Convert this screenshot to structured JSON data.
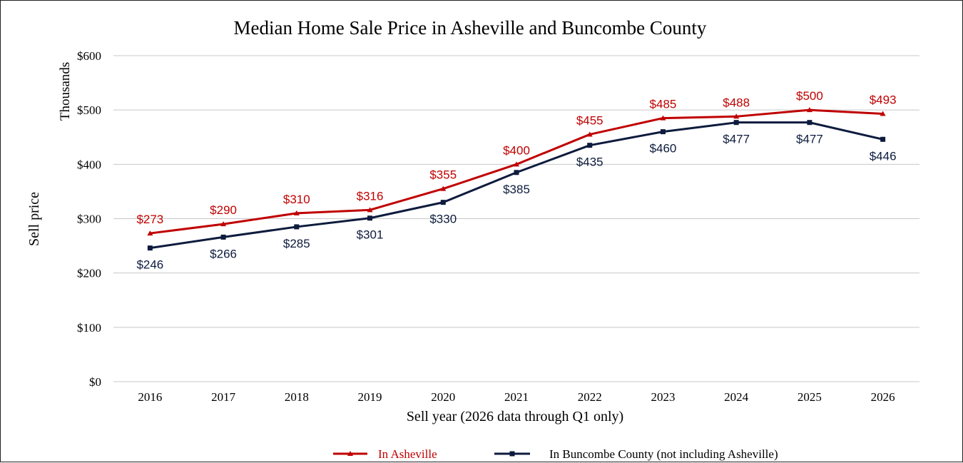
{
  "chart_data": {
    "type": "line",
    "title": "Median Home Sale Price in Asheville and Buncombe County",
    "xlabel": "Sell year (2026 data through Q1 only)",
    "ylabel": "Sell price",
    "y_units_label": "Thousands",
    "categories": [
      "2016",
      "2017",
      "2018",
      "2019",
      "2020",
      "2021",
      "2022",
      "2023",
      "2024",
      "2025",
      "2026"
    ],
    "ylim": [
      0,
      600
    ],
    "yticks": [
      0,
      100,
      200,
      300,
      400,
      500,
      600
    ],
    "ytick_labels": [
      "$0",
      "$100",
      "$200",
      "$300",
      "$400",
      "$500",
      "$600"
    ],
    "grid": true,
    "legend_position": "bottom",
    "series": [
      {
        "name": "In Asheville",
        "color": "#c00000",
        "marker": "triangle",
        "label_position": "above",
        "values": [
          273,
          290,
          310,
          316,
          355,
          400,
          455,
          485,
          488,
          500,
          493
        ],
        "data_labels": [
          "$273",
          "$290",
          "$310",
          "$316",
          "$355",
          "$400",
          "$455",
          "$485",
          "$488",
          "$500",
          "$493"
        ]
      },
      {
        "name": "In Buncombe County (not including Asheville)",
        "color": "#0d1b3d",
        "marker": "square",
        "label_position": "below",
        "values": [
          246,
          266,
          285,
          301,
          330,
          385,
          435,
          460,
          477,
          477,
          446
        ],
        "data_labels": [
          "$246",
          "$266",
          "$285",
          "$301",
          "$330",
          "$385",
          "$435",
          "$460",
          "$477",
          "$477",
          "$446"
        ]
      }
    ]
  }
}
